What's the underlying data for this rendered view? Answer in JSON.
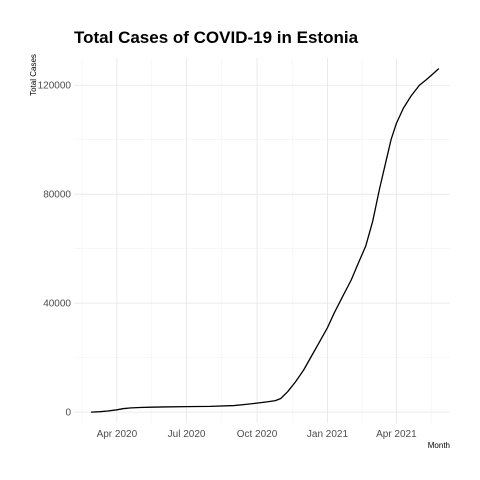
{
  "chart_data": {
    "type": "line",
    "title": "Total Cases of COVID-19 in Estonia",
    "xlabel": "Month",
    "ylabel": "Total Cases",
    "xlim": [
      "2020-02-05",
      "2021-06-10"
    ],
    "ylim": [
      -4000,
      130000
    ],
    "x_ticks": [
      {
        "date": "2020-04-01",
        "label": "Apr 2020"
      },
      {
        "date": "2020-07-01",
        "label": "Jul 2020"
      },
      {
        "date": "2020-10-01",
        "label": "Oct 2020"
      },
      {
        "date": "2021-01-01",
        "label": "Jan 2021"
      },
      {
        "date": "2021-04-01",
        "label": "Apr 2021"
      }
    ],
    "y_ticks": [
      {
        "value": 0,
        "label": "0"
      },
      {
        "value": 40000,
        "label": "40000"
      },
      {
        "value": 80000,
        "label": "80000"
      },
      {
        "value": 120000,
        "label": "120000"
      }
    ],
    "grid": true,
    "line_color": "#000000",
    "series": [
      {
        "x": [
          "2020-02-28",
          "2020-03-10",
          "2020-03-20",
          "2020-03-31",
          "2020-04-10",
          "2020-04-20",
          "2020-05-01",
          "2020-05-15",
          "2020-06-01",
          "2020-07-01",
          "2020-08-01",
          "2020-09-01",
          "2020-09-15",
          "2020-10-01",
          "2020-10-15",
          "2020-10-25",
          "2020-11-01",
          "2020-11-10",
          "2020-11-20",
          "2020-12-01",
          "2020-12-10",
          "2020-12-20",
          "2021-01-01",
          "2021-01-10",
          "2021-01-20",
          "2021-02-01",
          "2021-02-10",
          "2021-02-20",
          "2021-03-01",
          "2021-03-10",
          "2021-03-20",
          "2021-03-25",
          "2021-04-01",
          "2021-04-10",
          "2021-04-20",
          "2021-05-01",
          "2021-05-10",
          "2021-05-20",
          "2021-05-26"
        ],
        "values": [
          0,
          150,
          400,
          800,
          1300,
          1550,
          1700,
          1800,
          1900,
          2000,
          2100,
          2400,
          2800,
          3300,
          3800,
          4200,
          5000,
          7500,
          11000,
          15500,
          20000,
          25000,
          31000,
          36500,
          42000,
          48500,
          54500,
          61000,
          70000,
          82000,
          94000,
          100000,
          106000,
          111500,
          116000,
          120000,
          122000,
          124500,
          126000
        ]
      }
    ]
  }
}
